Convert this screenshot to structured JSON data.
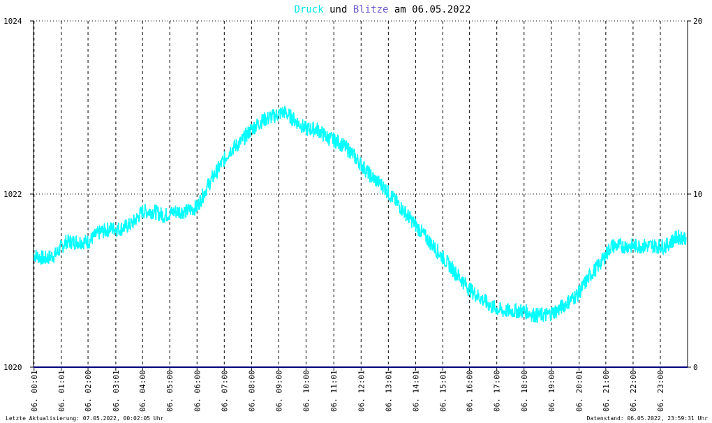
{
  "title": {
    "part1": "Druck",
    "part2": " und ",
    "part3": "Blitze",
    "part4": " am 06.05.2022",
    "color1": "#00e6e6",
    "color3": "#6a5acd"
  },
  "footer": {
    "left": "Letzte Aktualisierung: 07.05.2022, 00:02:05 Uhr",
    "right": "Datenstand: 06.05.2022, 23:59:31 Uhr"
  },
  "chart_data": {
    "type": "line",
    "title": "Druck und Blitze am 06.05.2022",
    "y_left": {
      "min": 1020,
      "max": 1024,
      "ticks": [
        "1020",
        "1022",
        "1024"
      ]
    },
    "y_right": {
      "min": 0,
      "max": 20,
      "ticks": [
        "0",
        "10",
        "20"
      ]
    },
    "grid": true,
    "x_ticks": [
      {
        "label": "06. 00:01",
        "h": 0.02
      },
      {
        "label": "06. 01:01",
        "h": 1.02
      },
      {
        "label": "06. 02:00",
        "h": 2.0
      },
      {
        "label": "06. 03:01",
        "h": 3.02
      },
      {
        "label": "06. 04:00",
        "h": 4.0
      },
      {
        "label": "06. 05:00",
        "h": 5.0
      },
      {
        "label": "06. 06:00",
        "h": 6.0
      },
      {
        "label": "06. 07:00",
        "h": 7.0
      },
      {
        "label": "06. 08:00",
        "h": 8.0
      },
      {
        "label": "06. 09:00",
        "h": 9.0
      },
      {
        "label": "06. 10:00",
        "h": 10.0
      },
      {
        "label": "06. 11:01",
        "h": 11.02
      },
      {
        "label": "06. 12:01",
        "h": 12.02
      },
      {
        "label": "06. 13:01",
        "h": 13.02
      },
      {
        "label": "06. 14:01",
        "h": 14.02
      },
      {
        "label": "06. 15:01",
        "h": 15.02
      },
      {
        "label": "06. 16:00",
        "h": 16.0
      },
      {
        "label": "06. 17:00",
        "h": 17.0
      },
      {
        "label": "06. 18:00",
        "h": 18.0
      },
      {
        "label": "06. 19:00",
        "h": 19.0
      },
      {
        "label": "06. 20:01",
        "h": 20.02
      },
      {
        "label": "06. 21:00",
        "h": 21.0
      },
      {
        "label": "06. 22:00",
        "h": 22.0
      },
      {
        "label": "06. 23:00",
        "h": 23.0
      }
    ],
    "series": [
      {
        "color": "#00ffff",
        "x": [
          0.0,
          0.4,
          0.8,
          1.2,
          1.6,
          2.0,
          2.4,
          2.8,
          3.2,
          3.6,
          4.0,
          4.4,
          4.8,
          5.2,
          5.6,
          6.0,
          6.4,
          6.8,
          7.2,
          7.6,
          8.0,
          8.4,
          8.8,
          9.2,
          9.6,
          10.0,
          10.4,
          10.8,
          11.2,
          11.6,
          12.0,
          12.4,
          12.8,
          13.2,
          13.6,
          14.0,
          14.4,
          14.8,
          15.2,
          15.6,
          16.0,
          16.4,
          16.8,
          17.2,
          17.6,
          18.0,
          18.4,
          18.8,
          19.2,
          19.6,
          20.0,
          20.4,
          20.8,
          21.2,
          21.6,
          22.0,
          22.4,
          22.8,
          23.2,
          23.6,
          23.95
        ],
        "y": [
          1021.3,
          1021.25,
          1021.3,
          1021.45,
          1021.45,
          1021.45,
          1021.55,
          1021.6,
          1021.6,
          1021.65,
          1021.8,
          1021.8,
          1021.75,
          1021.8,
          1021.8,
          1021.85,
          1022.1,
          1022.3,
          1022.5,
          1022.6,
          1022.75,
          1022.85,
          1022.9,
          1022.95,
          1022.85,
          1022.75,
          1022.75,
          1022.65,
          1022.6,
          1022.5,
          1022.35,
          1022.2,
          1022.1,
          1021.95,
          1021.8,
          1021.65,
          1021.5,
          1021.35,
          1021.2,
          1021.05,
          1020.9,
          1020.8,
          1020.7,
          1020.65,
          1020.65,
          1020.65,
          1020.6,
          1020.6,
          1020.65,
          1020.75,
          1020.85,
          1021.05,
          1021.2,
          1021.4,
          1021.4,
          1021.4,
          1021.4,
          1021.4,
          1021.4,
          1021.5,
          1021.5
        ]
      }
    ]
  }
}
